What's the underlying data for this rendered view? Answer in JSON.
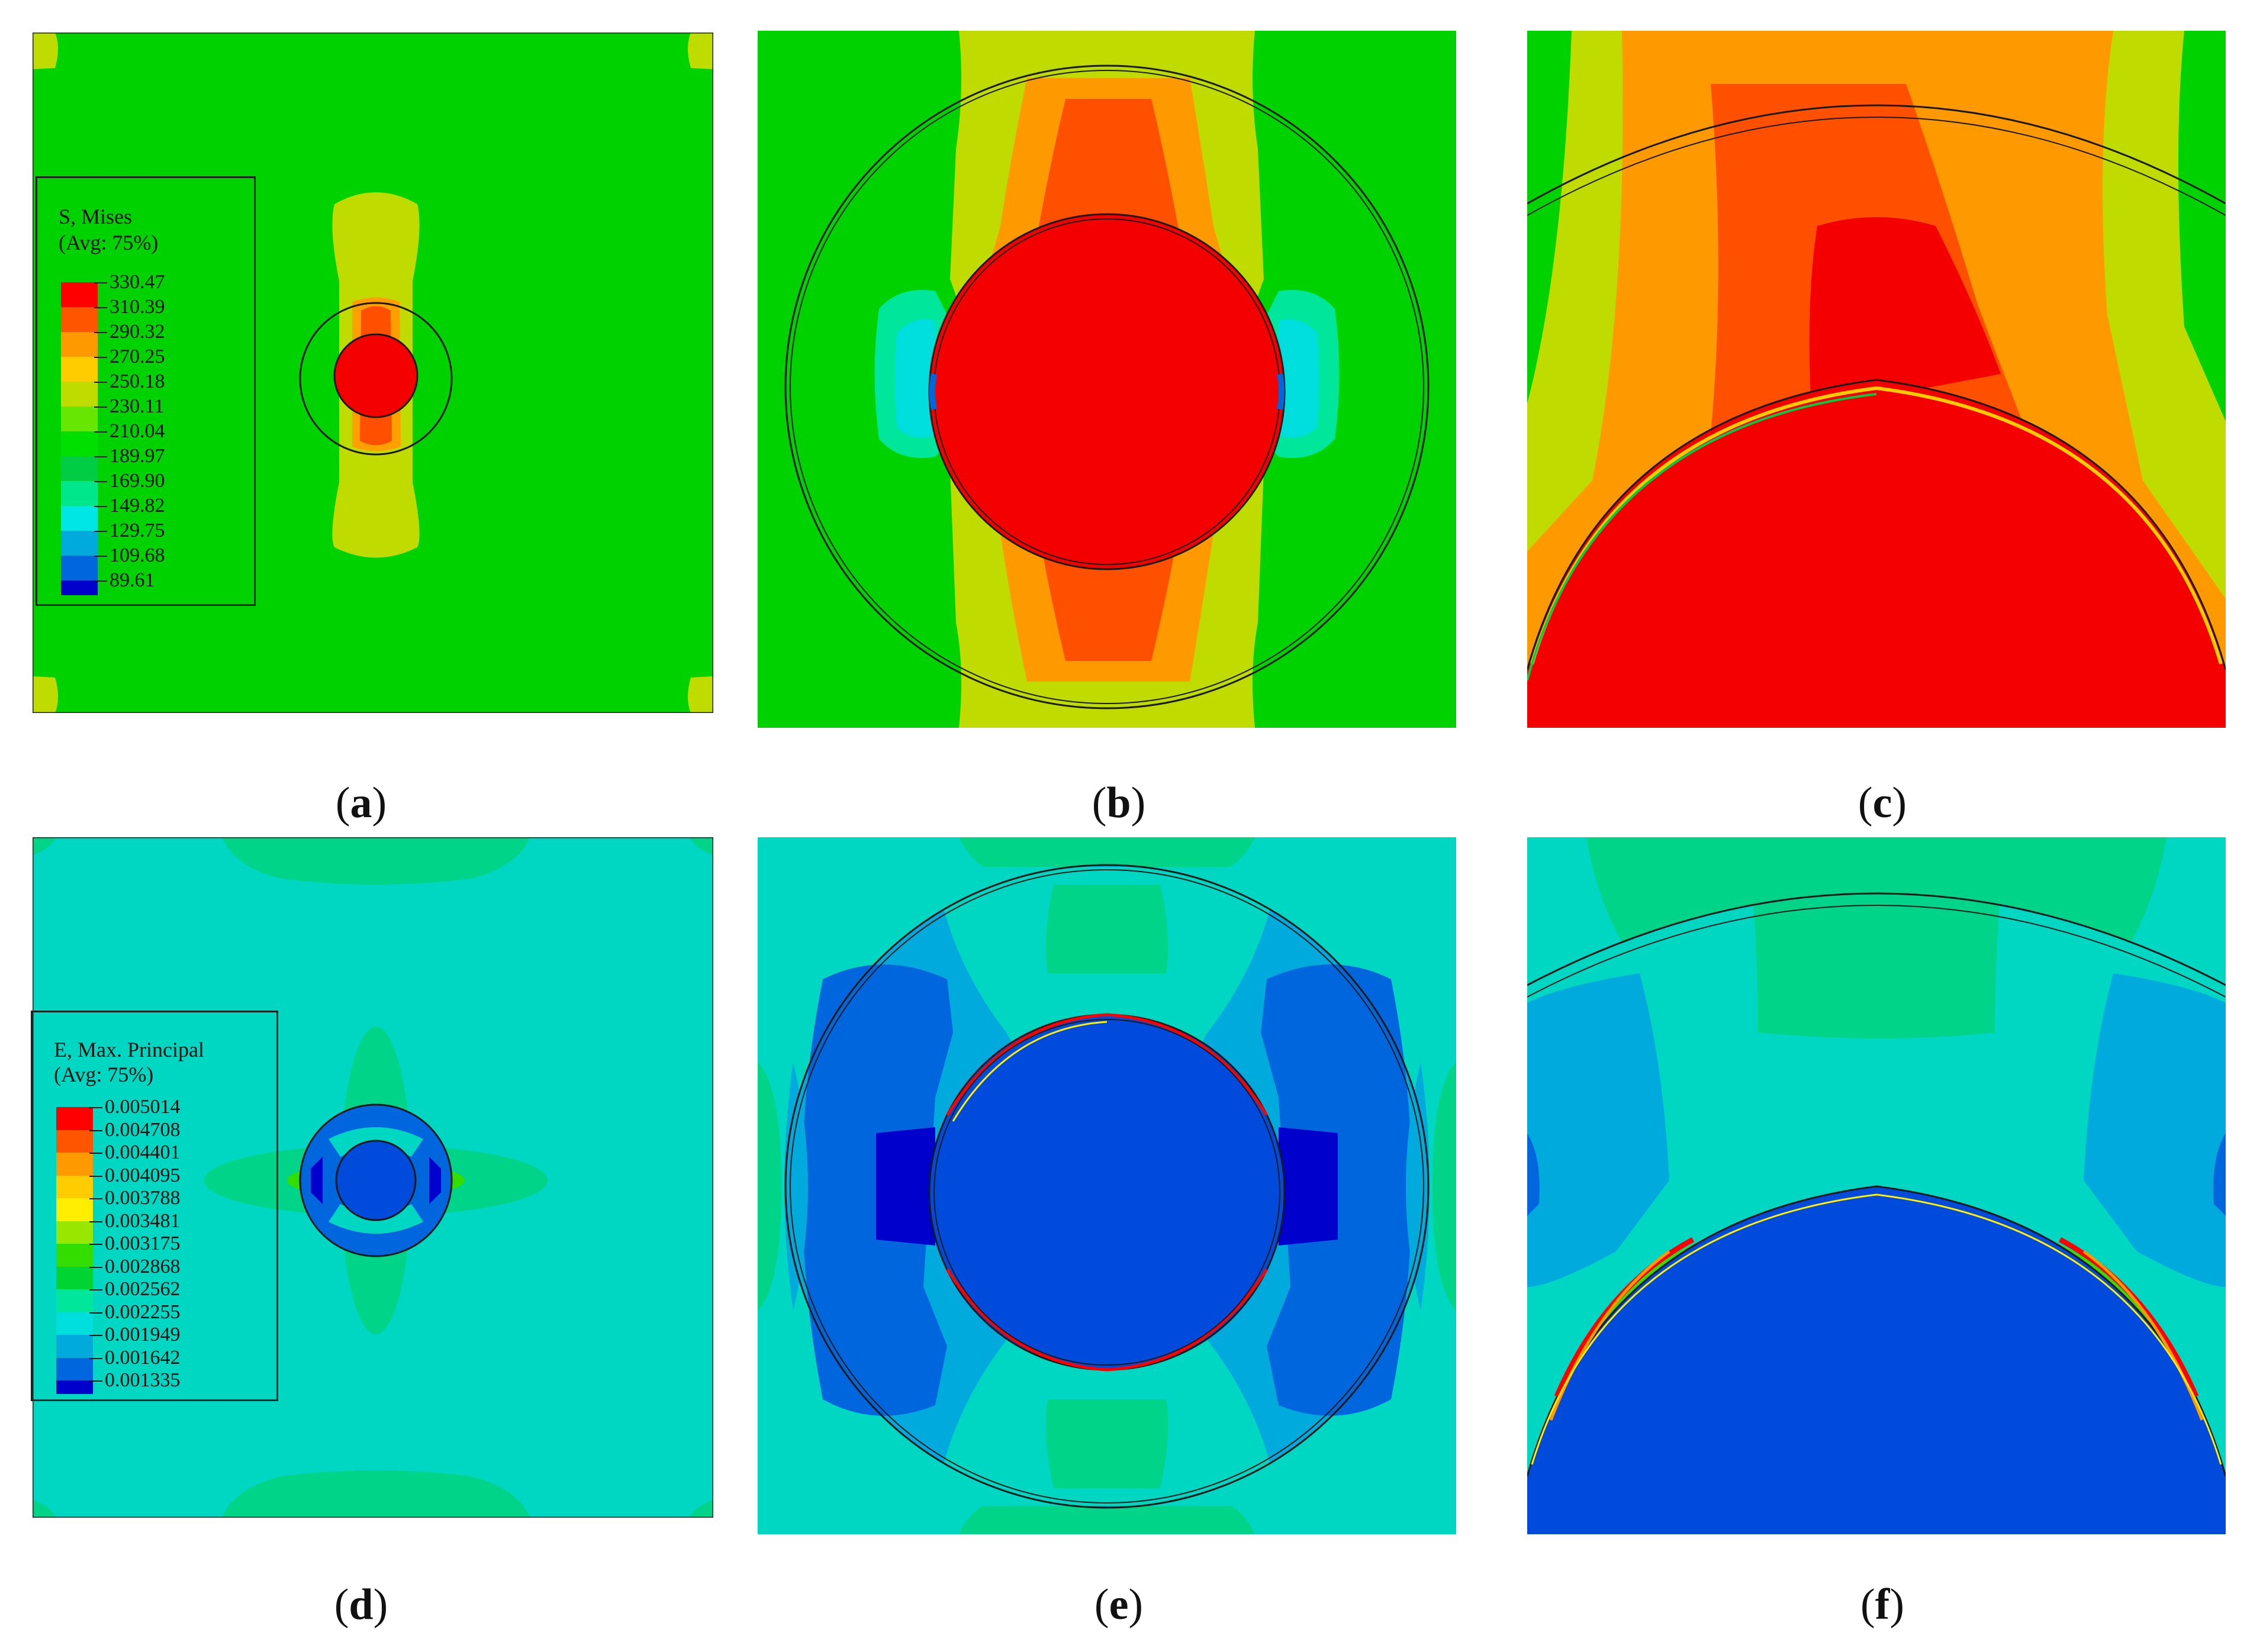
{
  "captions": {
    "a": "a",
    "b": "b",
    "c": "c",
    "d": "d",
    "e": "e",
    "f": "f"
  },
  "legend_stress": {
    "title_line1": "S, Mises",
    "title_line2": "(Avg: 75%)",
    "values": [
      "330.47",
      "310.39",
      "290.32",
      "270.25",
      "250.18",
      "230.11",
      "210.04",
      "189.97",
      "169.90",
      "149.82",
      "129.75",
      "109.68",
      "89.61"
    ],
    "colors": [
      "#ff0000",
      "#ff5500",
      "#ff9900",
      "#ffcc00",
      "#bfdb00",
      "#66e600",
      "#00e000",
      "#00cc44",
      "#00e68a",
      "#00e6e6",
      "#00aadd",
      "#0066dd",
      "#0000cc"
    ]
  },
  "legend_strain": {
    "title_line1": "E, Max. Principal",
    "title_line2": "(Avg: 75%)",
    "values": [
      "0.005014",
      "0.004708",
      "0.004401",
      "0.004095",
      "0.003788",
      "0.003481",
      "0.003175",
      "0.002868",
      "0.002562",
      "0.002255",
      "0.001949",
      "0.001642",
      "0.001335"
    ],
    "colors": [
      "#ff0000",
      "#ff5500",
      "#ff9900",
      "#ffcc00",
      "#ffee00",
      "#99e600",
      "#33dd00",
      "#00d433",
      "#00e69a",
      "#00dddd",
      "#00aadd",
      "#0066dd",
      "#0000cc"
    ]
  },
  "colors": {
    "stress_background": "#00d200",
    "stress_max": "#f50000",
    "strain_background": "#00d7c3",
    "strain_min": "#004bdc"
  }
}
